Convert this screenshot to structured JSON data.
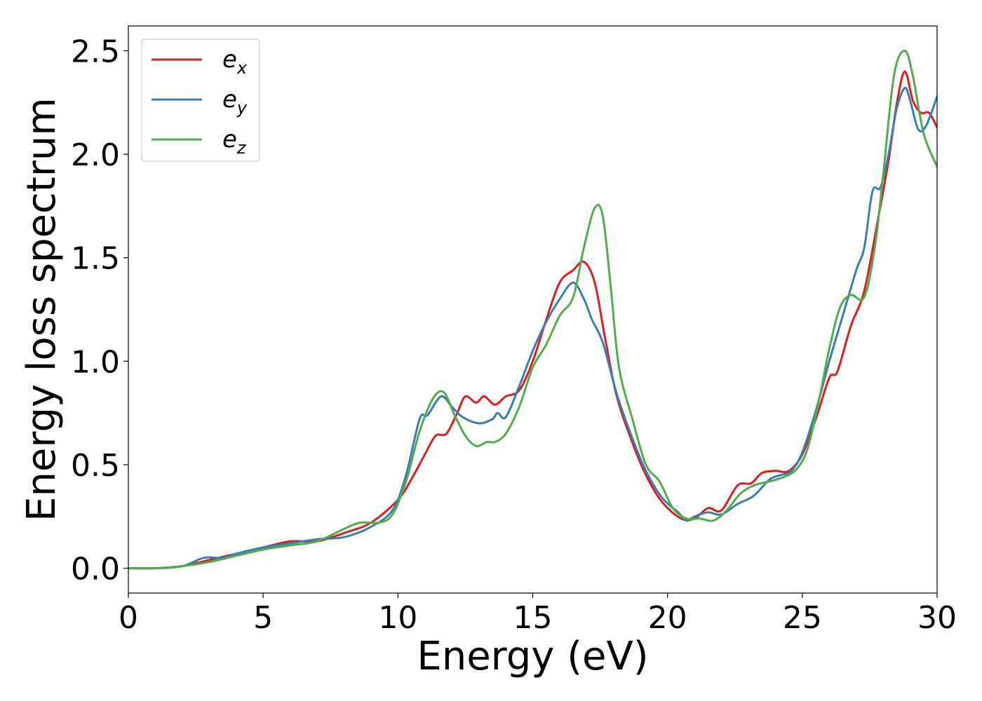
{
  "chart_data": {
    "type": "line",
    "title": "",
    "xlabel": "Energy (eV)",
    "ylabel": "Energy loss spectrum",
    "xlim": [
      0,
      30
    ],
    "ylim": [
      -0.12,
      2.62
    ],
    "xticks": [
      0,
      5,
      10,
      15,
      20,
      25,
      30
    ],
    "xtick_labels": [
      "0",
      "5",
      "10",
      "15",
      "20",
      "25",
      "30"
    ],
    "yticks": [
      0.0,
      0.5,
      1.0,
      1.5,
      2.0,
      2.5
    ],
    "ytick_labels": [
      "0.0",
      "0.5",
      "1.0",
      "1.5",
      "2.0",
      "2.5"
    ],
    "grid": false,
    "legend": "upper-left",
    "series": [
      {
        "name": "e",
        "subscript": "x",
        "color": "#e41a1c",
        "points": [
          [
            0,
            0
          ],
          [
            1,
            0
          ],
          [
            2,
            0.01
          ],
          [
            3,
            0.04
          ],
          [
            4,
            0.07
          ],
          [
            5,
            0.1
          ],
          [
            6,
            0.13
          ],
          [
            7,
            0.13
          ],
          [
            8,
            0.17
          ],
          [
            9,
            0.22
          ],
          [
            10,
            0.33
          ],
          [
            10.5,
            0.43
          ],
          [
            11,
            0.55
          ],
          [
            11.4,
            0.64
          ],
          [
            11.8,
            0.65
          ],
          [
            12.2,
            0.75
          ],
          [
            12.5,
            0.83
          ],
          [
            12.9,
            0.8
          ],
          [
            13.2,
            0.83
          ],
          [
            13.6,
            0.79
          ],
          [
            14,
            0.83
          ],
          [
            14.5,
            0.86
          ],
          [
            15,
            1.0
          ],
          [
            15.5,
            1.2
          ],
          [
            16,
            1.38
          ],
          [
            16.5,
            1.44
          ],
          [
            16.9,
            1.48
          ],
          [
            17.3,
            1.38
          ],
          [
            17.7,
            1.1
          ],
          [
            18.1,
            0.84
          ],
          [
            18.6,
            0.64
          ],
          [
            19.2,
            0.45
          ],
          [
            19.8,
            0.32
          ],
          [
            20.5,
            0.24
          ],
          [
            21,
            0.24
          ],
          [
            21.5,
            0.29
          ],
          [
            22,
            0.28
          ],
          [
            22.6,
            0.4
          ],
          [
            23.1,
            0.41
          ],
          [
            23.5,
            0.46
          ],
          [
            24,
            0.47
          ],
          [
            24.5,
            0.47
          ],
          [
            25,
            0.55
          ],
          [
            25.5,
            0.72
          ],
          [
            26,
            0.92
          ],
          [
            26.3,
            0.95
          ],
          [
            26.8,
            1.17
          ],
          [
            27.3,
            1.34
          ],
          [
            27.8,
            1.68
          ],
          [
            28.2,
            1.97
          ],
          [
            28.5,
            2.24
          ],
          [
            28.8,
            2.4
          ],
          [
            29.1,
            2.26
          ],
          [
            29.4,
            2.2
          ],
          [
            29.7,
            2.2
          ],
          [
            30,
            2.13
          ]
        ]
      },
      {
        "name": "e",
        "subscript": "y",
        "color": "#377eb8",
        "points": [
          [
            0,
            0
          ],
          [
            1,
            0
          ],
          [
            2,
            0.01
          ],
          [
            2.8,
            0.05
          ],
          [
            3.5,
            0.05
          ],
          [
            4,
            0.07
          ],
          [
            5,
            0.1
          ],
          [
            6,
            0.12
          ],
          [
            7,
            0.14
          ],
          [
            8,
            0.15
          ],
          [
            9,
            0.2
          ],
          [
            9.8,
            0.28
          ],
          [
            10.3,
            0.45
          ],
          [
            10.8,
            0.72
          ],
          [
            11.1,
            0.74
          ],
          [
            11.6,
            0.83
          ],
          [
            12,
            0.78
          ],
          [
            12.4,
            0.73
          ],
          [
            13,
            0.7
          ],
          [
            13.5,
            0.72
          ],
          [
            13.7,
            0.75
          ],
          [
            14,
            0.73
          ],
          [
            14.5,
            0.88
          ],
          [
            15,
            1.05
          ],
          [
            15.5,
            1.19
          ],
          [
            16,
            1.3
          ],
          [
            16.5,
            1.38
          ],
          [
            16.9,
            1.3
          ],
          [
            17.2,
            1.2
          ],
          [
            17.6,
            1.09
          ],
          [
            18.1,
            0.85
          ],
          [
            18.6,
            0.66
          ],
          [
            19.2,
            0.47
          ],
          [
            19.8,
            0.34
          ],
          [
            20.4,
            0.27
          ],
          [
            20.7,
            0.23
          ],
          [
            21,
            0.25
          ],
          [
            21.5,
            0.27
          ],
          [
            22,
            0.26
          ],
          [
            22.6,
            0.31
          ],
          [
            23.2,
            0.35
          ],
          [
            23.8,
            0.43
          ],
          [
            24.2,
            0.45
          ],
          [
            24.6,
            0.47
          ],
          [
            25,
            0.56
          ],
          [
            25.5,
            0.76
          ],
          [
            26,
            1.0
          ],
          [
            26.5,
            1.22
          ],
          [
            27,
            1.44
          ],
          [
            27.3,
            1.55
          ],
          [
            27.6,
            1.82
          ],
          [
            27.9,
            1.84
          ],
          [
            28.2,
            2.0
          ],
          [
            28.5,
            2.22
          ],
          [
            28.8,
            2.32
          ],
          [
            29,
            2.26
          ],
          [
            29.3,
            2.12
          ],
          [
            29.6,
            2.14
          ],
          [
            30,
            2.28
          ]
        ]
      },
      {
        "name": "e",
        "subscript": "z",
        "color": "#4daf4a",
        "points": [
          [
            0,
            0
          ],
          [
            1,
            0
          ],
          [
            2,
            0.01
          ],
          [
            3,
            0.03
          ],
          [
            4,
            0.06
          ],
          [
            5,
            0.09
          ],
          [
            6,
            0.11
          ],
          [
            7,
            0.13
          ],
          [
            8,
            0.19
          ],
          [
            8.6,
            0.22
          ],
          [
            9.3,
            0.22
          ],
          [
            9.8,
            0.26
          ],
          [
            10.3,
            0.42
          ],
          [
            10.8,
            0.66
          ],
          [
            11.3,
            0.82
          ],
          [
            11.7,
            0.85
          ],
          [
            12.1,
            0.74
          ],
          [
            12.5,
            0.64
          ],
          [
            12.9,
            0.59
          ],
          [
            13.3,
            0.61
          ],
          [
            13.6,
            0.61
          ],
          [
            14,
            0.65
          ],
          [
            14.5,
            0.78
          ],
          [
            15,
            0.97
          ],
          [
            15.5,
            1.08
          ],
          [
            16,
            1.22
          ],
          [
            16.5,
            1.31
          ],
          [
            16.9,
            1.55
          ],
          [
            17.3,
            1.74
          ],
          [
            17.6,
            1.7
          ],
          [
            17.9,
            1.35
          ],
          [
            18.2,
            0.97
          ],
          [
            18.7,
            0.72
          ],
          [
            19.2,
            0.5
          ],
          [
            19.7,
            0.42
          ],
          [
            20.2,
            0.29
          ],
          [
            20.7,
            0.24
          ],
          [
            21.2,
            0.24
          ],
          [
            21.7,
            0.23
          ],
          [
            22.2,
            0.28
          ],
          [
            22.7,
            0.36
          ],
          [
            23.2,
            0.4
          ],
          [
            23.8,
            0.42
          ],
          [
            24.3,
            0.44
          ],
          [
            24.8,
            0.48
          ],
          [
            25.2,
            0.58
          ],
          [
            25.6,
            0.8
          ],
          [
            26,
            1.06
          ],
          [
            26.4,
            1.26
          ],
          [
            26.8,
            1.32
          ],
          [
            27.3,
            1.31
          ],
          [
            27.7,
            1.56
          ],
          [
            28,
            1.9
          ],
          [
            28.4,
            2.38
          ],
          [
            28.8,
            2.5
          ],
          [
            29.1,
            2.38
          ],
          [
            29.5,
            2.1
          ],
          [
            30,
            1.94
          ]
        ]
      }
    ]
  }
}
